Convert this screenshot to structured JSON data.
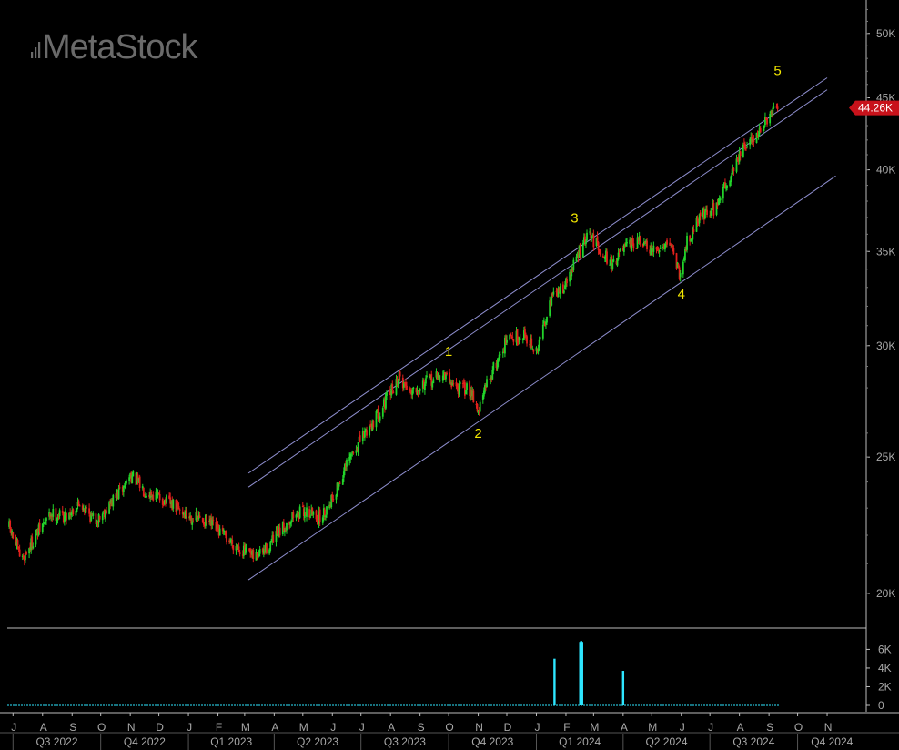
{
  "app": {
    "logo_text": "MetaStock"
  },
  "colors": {
    "background": "#000000",
    "up_bar": "#22d52a",
    "down_bar": "#e2201c",
    "channel": "#8f8fd0",
    "wave_label": "#f2e600",
    "volume": "#2ee6ff",
    "axis_line": "#bdbdbd",
    "axis_text": "#a8a8a8",
    "price_tag": "#c8121b"
  },
  "chart_data": [
    {
      "type": "candlestick",
      "title": "",
      "scale": "log",
      "ylim": [
        18900,
        52500
      ],
      "x_range": [
        "2022-06-25",
        "2024-12-12"
      ],
      "y_ticks": [
        {
          "value": 20000,
          "label": "20K"
        },
        {
          "value": 25000,
          "label": "25K"
        },
        {
          "value": 30000,
          "label": "30K"
        },
        {
          "value": 35000,
          "label": "35K"
        },
        {
          "value": 40000,
          "label": "40K"
        },
        {
          "value": 45000,
          "label": "45K"
        },
        {
          "value": 50000,
          "label": "50K"
        }
      ],
      "last_price": {
        "value": 44260,
        "label": "44.26K"
      },
      "close_path": [
        [
          "2022-06-27",
          22300
        ],
        [
          "2022-07-10",
          21100
        ],
        [
          "2022-07-25",
          22000
        ],
        [
          "2022-08-10",
          22800
        ],
        [
          "2022-08-25",
          22700
        ],
        [
          "2022-09-10",
          23200
        ],
        [
          "2022-09-25",
          22500
        ],
        [
          "2022-10-10",
          23100
        ],
        [
          "2022-10-25",
          23800
        ],
        [
          "2022-11-01",
          24300
        ],
        [
          "2022-11-15",
          23700
        ],
        [
          "2022-12-01",
          23400
        ],
        [
          "2022-12-15",
          23100
        ],
        [
          "2023-01-01",
          22700
        ],
        [
          "2023-01-20",
          22500
        ],
        [
          "2023-02-10",
          21900
        ],
        [
          "2023-02-25",
          21500
        ],
        [
          "2023-03-10",
          21200
        ],
        [
          "2023-03-20",
          21400
        ],
        [
          "2023-04-05",
          22000
        ],
        [
          "2023-04-20",
          22700
        ],
        [
          "2023-05-05",
          22900
        ],
        [
          "2023-05-20",
          22600
        ],
        [
          "2023-06-05",
          23700
        ],
        [
          "2023-06-20",
          25000
        ],
        [
          "2023-07-05",
          26000
        ],
        [
          "2023-07-20",
          26900
        ],
        [
          "2023-08-01",
          27800
        ],
        [
          "2023-08-10",
          28500
        ],
        [
          "2023-08-20",
          27900
        ],
        [
          "2023-09-10",
          28300
        ],
        [
          "2023-09-25",
          28600
        ],
        [
          "2023-10-10",
          28000
        ],
        [
          "2023-10-25",
          27900
        ],
        [
          "2023-11-01",
          26900
        ],
        [
          "2023-11-10",
          28200
        ],
        [
          "2023-12-01",
          30300
        ],
        [
          "2023-12-20",
          30600
        ],
        [
          "2024-01-01",
          29600
        ],
        [
          "2024-01-15",
          32300
        ],
        [
          "2024-02-01",
          33200
        ],
        [
          "2024-02-15",
          35000
        ],
        [
          "2024-02-25",
          36000
        ],
        [
          "2024-03-10",
          35000
        ],
        [
          "2024-03-20",
          34300
        ],
        [
          "2024-04-01",
          35100
        ],
        [
          "2024-04-20",
          35600
        ],
        [
          "2024-05-01",
          34900
        ],
        [
          "2024-05-20",
          35700
        ],
        [
          "2024-05-31",
          33600
        ],
        [
          "2024-06-05",
          35300
        ],
        [
          "2024-06-20",
          37100
        ],
        [
          "2024-07-05",
          37500
        ],
        [
          "2024-07-20",
          39300
        ],
        [
          "2024-08-01",
          41000
        ],
        [
          "2024-08-20",
          42500
        ],
        [
          "2024-09-10",
          44260
        ]
      ],
      "trend_lines": [
        {
          "start": [
            "2023-03-05",
            24350
          ],
          "end": [
            "2024-11-01",
            46500
          ]
        },
        {
          "start": [
            "2023-03-05",
            23800
          ],
          "end": [
            "2024-11-01",
            45600
          ]
        },
        {
          "start": [
            "2023-03-05",
            20450
          ],
          "end": [
            "2024-11-10",
            39600
          ]
        }
      ],
      "annotations": [
        {
          "text": "1",
          "x": "2023-10-01",
          "y": 29500
        },
        {
          "text": "2",
          "x": "2023-11-01",
          "y": 25800
        },
        {
          "text": "3",
          "x": "2024-02-10",
          "y": 36700
        },
        {
          "text": "4",
          "x": "2024-06-01",
          "y": 32400
        },
        {
          "text": "5",
          "x": "2024-09-10",
          "y": 46700
        }
      ]
    },
    {
      "type": "bar",
      "title": "",
      "ylim": [
        0,
        7600
      ],
      "y_ticks": [
        {
          "value": 0,
          "label": "0"
        },
        {
          "value": 2000,
          "label": "2K"
        },
        {
          "value": 4000,
          "label": "4K"
        },
        {
          "value": 6000,
          "label": "6K"
        }
      ],
      "bars": [
        {
          "x": "2024-01-20",
          "value": 5000
        },
        {
          "x": "2024-02-16",
          "value": 6800
        },
        {
          "x": "2024-02-17",
          "value": 6900
        },
        {
          "x": "2024-02-18",
          "value": 6800
        },
        {
          "x": "2024-04-01",
          "value": 3700
        }
      ],
      "baseline": {
        "start": "2022-06-25",
        "end": "2024-09-12",
        "value": 0
      }
    }
  ],
  "x_axis": {
    "months": [
      {
        "label": "J",
        "date": "2022-07-01"
      },
      {
        "label": "A",
        "date": "2022-08-01"
      },
      {
        "label": "S",
        "date": "2022-09-01"
      },
      {
        "label": "O",
        "date": "2022-10-01"
      },
      {
        "label": "N",
        "date": "2022-11-01"
      },
      {
        "label": "D",
        "date": "2022-12-01"
      },
      {
        "label": "J",
        "date": "2023-01-01"
      },
      {
        "label": "F",
        "date": "2023-02-01"
      },
      {
        "label": "M",
        "date": "2023-03-01"
      },
      {
        "label": "A",
        "date": "2023-04-01"
      },
      {
        "label": "M",
        "date": "2023-05-01"
      },
      {
        "label": "J",
        "date": "2023-06-01"
      },
      {
        "label": "J",
        "date": "2023-07-01"
      },
      {
        "label": "A",
        "date": "2023-08-01"
      },
      {
        "label": "S",
        "date": "2023-09-01"
      },
      {
        "label": "O",
        "date": "2023-10-01"
      },
      {
        "label": "N",
        "date": "2023-11-01"
      },
      {
        "label": "D",
        "date": "2023-12-01"
      },
      {
        "label": "J",
        "date": "2024-01-01"
      },
      {
        "label": "F",
        "date": "2024-02-01"
      },
      {
        "label": "M",
        "date": "2024-03-01"
      },
      {
        "label": "A",
        "date": "2024-04-01"
      },
      {
        "label": "M",
        "date": "2024-05-01"
      },
      {
        "label": "J",
        "date": "2024-06-01"
      },
      {
        "label": "J",
        "date": "2024-07-01"
      },
      {
        "label": "A",
        "date": "2024-08-01"
      },
      {
        "label": "S",
        "date": "2024-09-01"
      },
      {
        "label": "O",
        "date": "2024-10-01"
      },
      {
        "label": "N",
        "date": "2024-11-01"
      }
    ],
    "quarters": [
      {
        "label": "Q3 2022",
        "start": "2022-07-01",
        "end": "2022-10-01"
      },
      {
        "label": "Q4 2022",
        "start": "2022-10-01",
        "end": "2023-01-01"
      },
      {
        "label": "Q1 2023",
        "start": "2023-01-01",
        "end": "2023-04-01"
      },
      {
        "label": "Q2 2023",
        "start": "2023-04-01",
        "end": "2023-07-01"
      },
      {
        "label": "Q3 2023",
        "start": "2023-07-01",
        "end": "2023-10-01"
      },
      {
        "label": "Q4 2023",
        "start": "2023-10-01",
        "end": "2024-01-01"
      },
      {
        "label": "Q1 2024",
        "start": "2024-01-01",
        "end": "2024-04-01"
      },
      {
        "label": "Q2 2024",
        "start": "2024-04-01",
        "end": "2024-07-01"
      },
      {
        "label": "Q3 2024",
        "start": "2024-07-01",
        "end": "2024-10-01"
      },
      {
        "label": "Q4 2024",
        "start": "2024-10-01",
        "end": "2024-12-12"
      }
    ]
  }
}
